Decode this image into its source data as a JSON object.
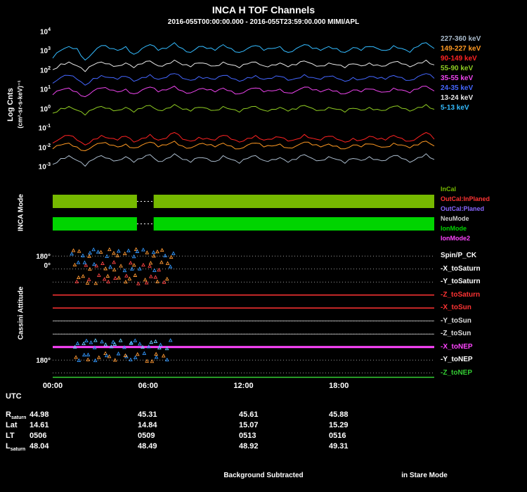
{
  "header": {
    "title": "INCA H TOF Channels",
    "subtitle": "2016-055T00:00:00.000 - 2016-055T23:59:00.000 MIMI/APL"
  },
  "style": {
    "background": "#000000",
    "frame": "#ffffff",
    "text": "#ffffff",
    "dotted_line": "#cccccc"
  },
  "x_axis": {
    "label": "UTC",
    "ticks": [
      "00:00",
      "06:00",
      "12:00",
      "18:00"
    ],
    "range_hours": [
      0,
      24
    ]
  },
  "chart_data": [
    {
      "type": "line",
      "panel": "tof-channels",
      "ylabel": "Log Cnts",
      "ylabel_units": "(cm²-sr-s-keV)⁻¹",
      "y_scale": "log10",
      "ylim_log": [
        -3.5,
        4
      ],
      "y_tick_exponents": [
        4,
        3,
        2,
        1,
        0,
        -1,
        -2,
        -3
      ],
      "series": [
        {
          "name": "227-360 keV",
          "color": "#aabbcc",
          "log_values": [
            -2.8,
            -2.5,
            -2.35,
            -2.6,
            -2.9,
            -2.55,
            -2.35,
            -2.5,
            -2.6,
            -2.4,
            -2.7,
            -2.5,
            -2.3,
            -2.65,
            -2.5,
            -2.25,
            -2.55,
            -2.7,
            -2.45,
            -2.5,
            -2.65,
            -2.35,
            -2.55,
            -2.75,
            -2.5,
            -2.35,
            -2.6,
            -2.55,
            -2.45,
            -2.7,
            -2.55,
            -2.3,
            -2.5,
            -2.6,
            -2.4,
            -2.55,
            -2.75,
            -2.5,
            -2.6,
            -2.4,
            -2.55,
            -2.6,
            -2.35,
            -2.5,
            -2.7,
            -2.45,
            -2.25,
            -2.55
          ]
        },
        {
          "name": "149-227 keV",
          "color": "#ff9922",
          "log_values": [
            -2.0,
            -1.8,
            -1.7,
            -1.9,
            -2.1,
            -1.85,
            -1.7,
            -1.8,
            -1.9,
            -1.75,
            -1.95,
            -1.8,
            -1.65,
            -1.9,
            -1.8,
            -1.6,
            -1.85,
            -1.95,
            -1.75,
            -1.8,
            -1.9,
            -1.7,
            -1.85,
            -2.0,
            -1.8,
            -1.7,
            -1.9,
            -1.85,
            -1.75,
            -1.95,
            -1.85,
            -1.65,
            -1.8,
            -1.9,
            -1.75,
            -1.85,
            -2.0,
            -1.8,
            -1.9,
            -1.75,
            -1.85,
            -1.9,
            -1.7,
            -1.8,
            -1.95,
            -1.8,
            -1.6,
            -1.85
          ]
        },
        {
          "name": "90-149 keV",
          "color": "#ff2222",
          "log_values": [
            -1.7,
            -1.45,
            -1.3,
            -1.55,
            -1.8,
            -1.5,
            -1.3,
            -1.45,
            -1.55,
            -1.35,
            -1.65,
            -1.45,
            -1.25,
            -1.55,
            -1.45,
            -1.15,
            -1.5,
            -1.6,
            -1.4,
            -1.45,
            -1.55,
            -1.3,
            -1.5,
            -1.65,
            -1.45,
            -1.3,
            -1.55,
            -1.5,
            -1.4,
            -1.6,
            -1.5,
            -1.25,
            -1.45,
            -1.55,
            -1.35,
            -1.5,
            -1.65,
            -1.45,
            -1.55,
            -1.35,
            -1.5,
            -1.55,
            -1.3,
            -1.45,
            -1.6,
            -1.4,
            -1.15,
            -1.5
          ]
        },
        {
          "name": "55-90 keV",
          "color": "#8fcc22",
          "log_values": [
            -0.15,
            0.1,
            0.2,
            0.0,
            -0.25,
            0.05,
            0.2,
            0.1,
            0.0,
            0.15,
            -0.1,
            0.1,
            0.25,
            0.0,
            0.1,
            0.3,
            0.05,
            -0.05,
            0.15,
            0.1,
            0.0,
            0.2,
            0.05,
            -0.1,
            0.1,
            0.2,
            0.0,
            0.05,
            0.15,
            -0.05,
            0.05,
            0.25,
            0.1,
            0.0,
            0.15,
            0.05,
            -0.1,
            0.1,
            0.0,
            0.15,
            0.05,
            0.0,
            0.2,
            0.1,
            -0.05,
            0.15,
            0.3,
            0.05
          ]
        },
        {
          "name": "35-55 keV",
          "color": "#ee44ee",
          "log_values": [
            0.8,
            1.05,
            1.15,
            0.95,
            0.7,
            1.0,
            1.15,
            1.05,
            0.95,
            1.1,
            0.85,
            1.05,
            1.2,
            0.95,
            1.05,
            1.25,
            1.0,
            0.9,
            1.1,
            1.05,
            0.95,
            1.15,
            1.0,
            0.85,
            1.05,
            1.15,
            0.95,
            1.0,
            1.1,
            0.9,
            1.0,
            1.2,
            1.05,
            0.95,
            1.1,
            1.0,
            0.85,
            1.05,
            0.95,
            1.1,
            1.0,
            0.95,
            1.15,
            1.05,
            0.9,
            1.1,
            1.25,
            1.0
          ]
        },
        {
          "name": "24-35 keV",
          "color": "#4466ff",
          "log_values": [
            1.4,
            1.7,
            1.8,
            1.6,
            1.3,
            1.65,
            1.8,
            1.7,
            1.6,
            1.75,
            1.5,
            1.7,
            1.85,
            1.6,
            1.7,
            1.9,
            1.65,
            1.55,
            1.75,
            1.7,
            1.6,
            1.8,
            1.65,
            1.5,
            1.7,
            1.8,
            1.6,
            1.65,
            1.75,
            1.55,
            1.65,
            1.85,
            1.7,
            1.6,
            1.75,
            1.65,
            1.5,
            1.7,
            1.6,
            1.75,
            1.65,
            1.6,
            1.8,
            1.7,
            1.55,
            1.75,
            1.9,
            1.65
          ]
        },
        {
          "name": "13-24 keV",
          "color": "#e8e8e8",
          "log_values": [
            2.1,
            2.4,
            2.5,
            2.3,
            2.0,
            2.35,
            2.5,
            2.4,
            2.3,
            2.45,
            2.2,
            2.4,
            2.55,
            2.3,
            2.4,
            2.6,
            2.35,
            2.25,
            2.45,
            2.4,
            2.3,
            2.5,
            2.35,
            2.2,
            2.4,
            2.5,
            2.3,
            2.35,
            2.45,
            2.25,
            2.35,
            2.55,
            2.4,
            2.3,
            2.45,
            2.35,
            2.2,
            2.4,
            2.3,
            2.45,
            2.35,
            2.3,
            2.5,
            2.4,
            2.25,
            2.45,
            2.6,
            2.35
          ]
        },
        {
          "name": "5-13 keV",
          "color": "#33bbff",
          "log_values": [
            2.7,
            3.1,
            3.3,
            3.2,
            2.6,
            3.0,
            3.35,
            3.2,
            3.1,
            3.3,
            2.9,
            3.2,
            3.4,
            3.1,
            3.2,
            3.5,
            3.2,
            3.0,
            3.3,
            3.2,
            3.1,
            3.4,
            3.2,
            3.0,
            3.2,
            3.35,
            3.1,
            3.2,
            3.3,
            3.0,
            3.2,
            3.4,
            3.2,
            3.1,
            3.3,
            3.2,
            3.0,
            3.25,
            3.1,
            3.3,
            3.2,
            3.1,
            3.35,
            3.2,
            3.0,
            3.3,
            3.5,
            3.2
          ]
        }
      ]
    },
    {
      "type": "bar",
      "panel": "inca-mode",
      "title": "INCA Mode",
      "legend": [
        {
          "label": "InCal",
          "color": "#76b900"
        },
        {
          "label": "OutCal:InPlaned",
          "color": "#ff3333"
        },
        {
          "label": "OutCal:Planed",
          "color": "#8866ff"
        },
        {
          "label": "NeuMode",
          "color": "#cccccc"
        },
        {
          "label": "IonMode",
          "color": "#00d400"
        },
        {
          "label": "IonMode2",
          "color": "#ff44ff"
        }
      ],
      "bars": [
        {
          "row": 0,
          "color": "#76b900",
          "segments_hours": [
            [
              0,
              5.3
            ],
            [
              6.35,
              24
            ]
          ]
        },
        {
          "row": 1,
          "color": "#00d400",
          "segments_hours": [
            [
              0,
              5.3
            ],
            [
              6.35,
              24
            ]
          ]
        }
      ]
    },
    {
      "type": "line",
      "panel": "cassini-attitude",
      "title": "Cassini Attitude",
      "y_tick_labels": [
        "180°",
        "0°",
        "180°"
      ],
      "bands": [
        {
          "name": "Spin/P_CK",
          "color": "#ffffff",
          "line": "none",
          "scatter": {
            "t0": 1.2,
            "t1": 7.6,
            "n": 28,
            "colors": [
              "#3399ff",
              "#ff9933"
            ]
          }
        },
        {
          "name": "-X_toSaturn",
          "color": "#ffffff",
          "line": "none",
          "scatter": {
            "t0": 1.4,
            "t1": 7.4,
            "n": 26,
            "colors": [
              "#3399ff",
              "#ff9933",
              "#ff4444"
            ]
          }
        },
        {
          "name": "-Y_toSaturn",
          "color": "#ffffff",
          "line": "none",
          "scatter": {
            "t0": 1.4,
            "t1": 7.2,
            "n": 24,
            "colors": [
              "#ff9933",
              "#ff4444"
            ]
          }
        },
        {
          "name": "-Z_toSaturn",
          "color": "#ff3333",
          "line": "solid"
        },
        {
          "name": "-X_toSun",
          "color": "#ff3333",
          "line": "solid"
        },
        {
          "name": "-Y_toSun",
          "color": "#dddddd",
          "line": "thin"
        },
        {
          "name": "-Z_toSun",
          "color": "#dddddd",
          "line": "thin"
        },
        {
          "name": "-X_toNEP",
          "color": "#ff44ff",
          "line": "thick",
          "scatter": {
            "t0": 1.4,
            "t1": 7.4,
            "n": 26,
            "colors": [
              "#3399ff",
              "#66ccff"
            ]
          }
        },
        {
          "name": "-Y_toNEP",
          "color": "#ffffff",
          "line": "none",
          "scatter": {
            "t0": 1.4,
            "t1": 7.2,
            "n": 24,
            "colors": [
              "#3399ff",
              "#ff9933"
            ]
          }
        },
        {
          "name": "-Z_toNEP",
          "color": "#33cc33",
          "line": "solid",
          "line_offset": 6
        }
      ]
    }
  ],
  "table": {
    "rows": [
      {
        "label": "R",
        "sub": "saturn",
        "values": [
          "44.98",
          "45.31",
          "45.61",
          "45.88"
        ]
      },
      {
        "label": "Lat",
        "sub": "",
        "values": [
          "14.61",
          "14.84",
          "15.07",
          "15.29"
        ]
      },
      {
        "label": "LT",
        "sub": "",
        "values": [
          "0506",
          "0509",
          "0513",
          "0516"
        ]
      },
      {
        "label": "L",
        "sub": "saturn",
        "values": [
          "48.04",
          "48.49",
          "48.92",
          "49.31"
        ]
      }
    ]
  },
  "footer": {
    "center": "Background Subtracted",
    "right": "in Stare Mode"
  }
}
